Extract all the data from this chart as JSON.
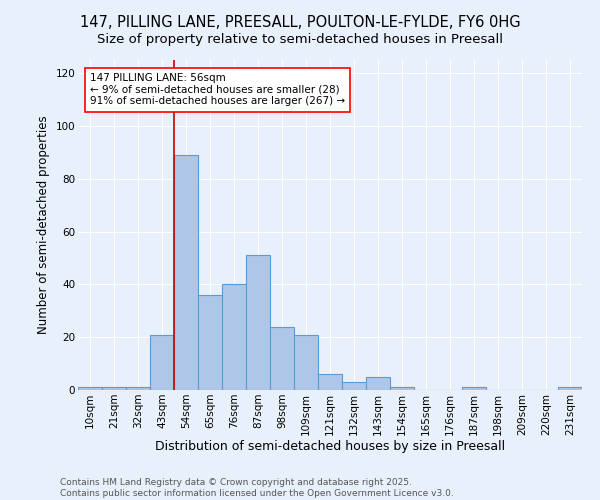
{
  "title": "147, PILLING LANE, PREESALL, POULTON-LE-FYLDE, FY6 0HG",
  "subtitle": "Size of property relative to semi-detached houses in Preesall",
  "xlabel": "Distribution of semi-detached houses by size in Preesall",
  "ylabel": "Number of semi-detached properties",
  "categories": [
    "10sqm",
    "21sqm",
    "32sqm",
    "43sqm",
    "54sqm",
    "65sqm",
    "76sqm",
    "87sqm",
    "98sqm",
    "109sqm",
    "121sqm",
    "132sqm",
    "143sqm",
    "154sqm",
    "165sqm",
    "176sqm",
    "187sqm",
    "198sqm",
    "209sqm",
    "220sqm",
    "231sqm"
  ],
  "values": [
    1,
    1,
    1,
    21,
    89,
    36,
    40,
    51,
    24,
    21,
    6,
    3,
    5,
    1,
    0,
    0,
    1,
    0,
    0,
    0,
    1
  ],
  "bar_color": "#aec6e8",
  "bar_edge_color": "#5b9bd5",
  "vline_color": "#cc0000",
  "annotation_text": "147 PILLING LANE: 56sqm\n← 9% of semi-detached houses are smaller (28)\n91% of semi-detached houses are larger (267) →",
  "ylim": [
    0,
    125
  ],
  "yticks": [
    0,
    20,
    40,
    60,
    80,
    100,
    120
  ],
  "background_color": "#e8f0fb",
  "footer_line1": "Contains HM Land Registry data © Crown copyright and database right 2025.",
  "footer_line2": "Contains public sector information licensed under the Open Government Licence v3.0.",
  "title_fontsize": 10.5,
  "subtitle_fontsize": 9.5,
  "xlabel_fontsize": 9,
  "ylabel_fontsize": 8.5,
  "tick_fontsize": 7.5,
  "annot_fontsize": 7.5,
  "footer_fontsize": 6.5
}
